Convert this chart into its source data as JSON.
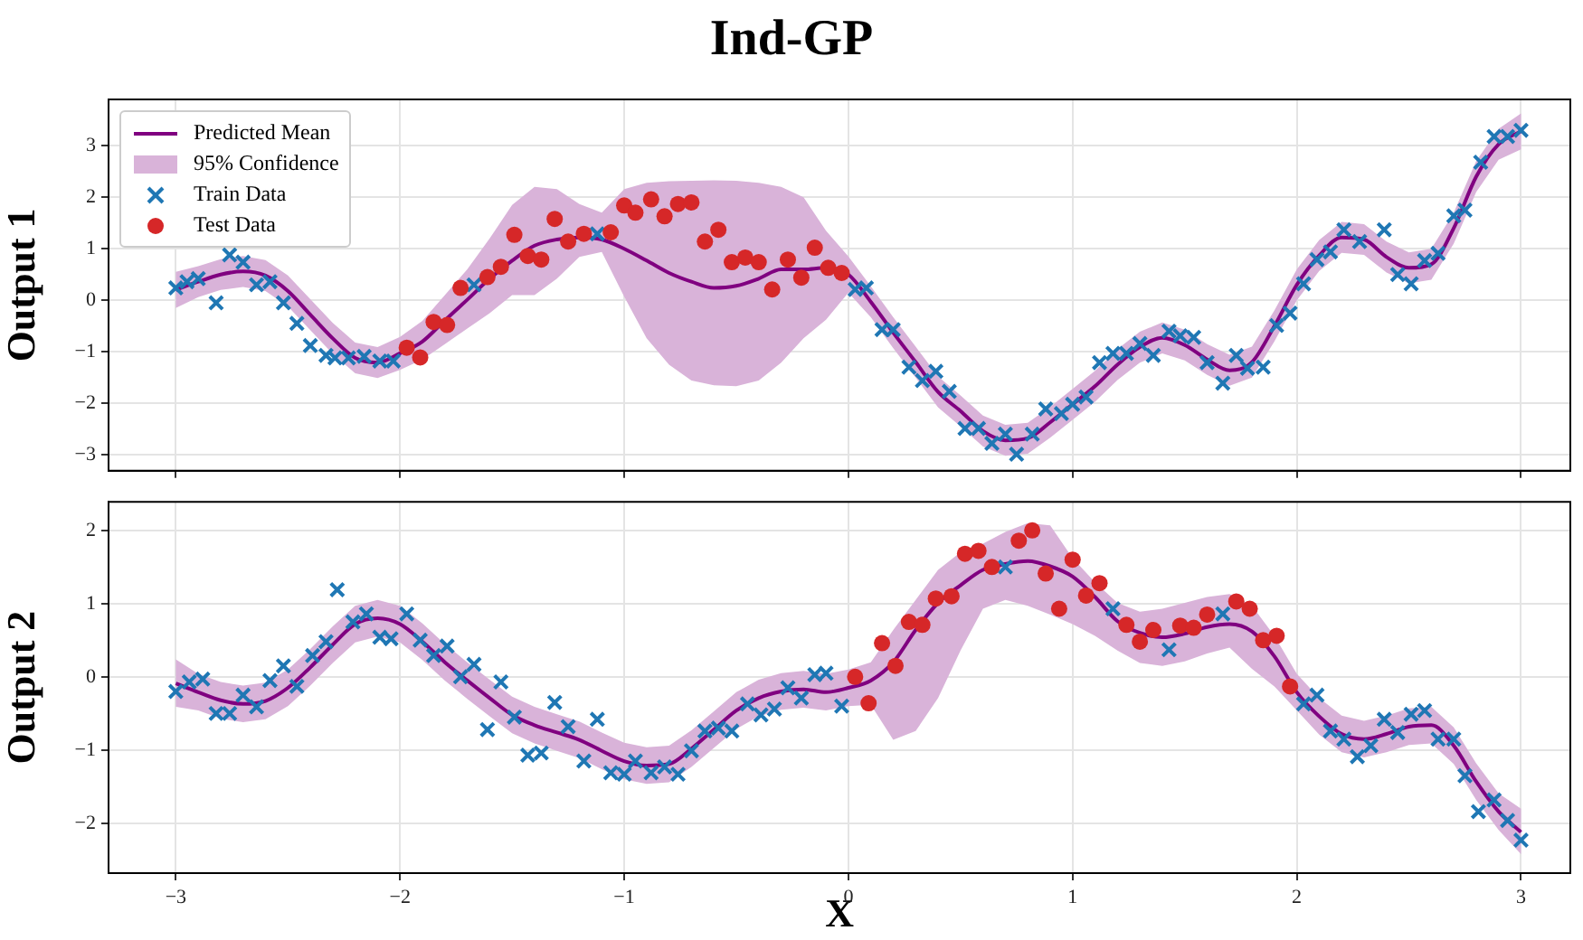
{
  "chart_data": [
    {
      "type": "line",
      "title": "Ind-GP",
      "ylabel": "Output 1",
      "xlim": [
        -3.3,
        3.22
      ],
      "xticks": [
        -3,
        -2,
        -1,
        0,
        1,
        2,
        3
      ],
      "ylim": [
        -3.31,
        3.9
      ],
      "yticks": [
        -3,
        -2,
        -1,
        0,
        1,
        2,
        3
      ],
      "grid": true,
      "legend": "top left",
      "tick_labels": "y",
      "annotations": [
        "95% Confidence"
      ],
      "series": [
        {
          "name": "Predicted Mean",
          "type": "line",
          "color": "#800080",
          "marker": "none",
          "x": [
            -3.0,
            -2.9,
            -2.8,
            -2.7,
            -2.6,
            -2.5,
            -2.4,
            -2.3,
            -2.2,
            -2.1,
            -2.0,
            -1.9,
            -1.8,
            -1.7,
            -1.6,
            -1.5,
            -1.4,
            -1.3,
            -1.2,
            -1.1,
            -1.0,
            -0.9,
            -0.8,
            -0.7,
            -0.6,
            -0.5,
            -0.4,
            -0.3,
            -0.2,
            -0.1,
            0.0,
            0.1,
            0.2,
            0.3,
            0.4,
            0.5,
            0.6,
            0.7,
            0.8,
            0.9,
            1.0,
            1.1,
            1.2,
            1.3,
            1.4,
            1.5,
            1.6,
            1.7,
            1.8,
            1.9,
            2.0,
            2.1,
            2.2,
            2.3,
            2.4,
            2.5,
            2.6,
            2.7,
            2.8,
            2.9,
            3.0
          ],
          "values": [
            0.2,
            0.36,
            0.5,
            0.56,
            0.48,
            0.18,
            -0.28,
            -0.74,
            -1.12,
            -1.21,
            -1.03,
            -0.8,
            -0.39,
            0.01,
            0.42,
            0.77,
            1.06,
            1.18,
            1.22,
            1.18,
            1.0,
            0.77,
            0.53,
            0.36,
            0.24,
            0.28,
            0.42,
            0.6,
            0.6,
            0.63,
            0.5,
            -0.03,
            -0.63,
            -1.2,
            -1.78,
            -2.15,
            -2.54,
            -2.72,
            -2.68,
            -2.37,
            -2.02,
            -1.67,
            -1.25,
            -0.91,
            -0.73,
            -0.87,
            -1.15,
            -1.36,
            -1.2,
            -0.5,
            0.3,
            0.87,
            1.22,
            1.18,
            0.84,
            0.63,
            0.7,
            1.4,
            2.4,
            3.03,
            3.28
          ],
          "lower": [
            -0.15,
            0.06,
            0.2,
            0.26,
            0.18,
            -0.12,
            -0.58,
            -1.04,
            -1.42,
            -1.51,
            -1.35,
            -1.15,
            -0.85,
            -0.55,
            -0.25,
            0.1,
            0.1,
            0.42,
            0.84,
            0.94,
            0.07,
            -0.74,
            -1.25,
            -1.56,
            -1.65,
            -1.67,
            -1.56,
            -1.21,
            -0.74,
            -0.38,
            0.15,
            -0.33,
            -0.93,
            -1.5,
            -2.08,
            -2.45,
            -2.84,
            -3.02,
            -2.98,
            -2.67,
            -2.32,
            -1.97,
            -1.55,
            -1.21,
            -1.03,
            -1.17,
            -1.45,
            -1.66,
            -1.5,
            -0.8,
            0.0,
            0.57,
            0.92,
            0.88,
            0.54,
            0.33,
            0.4,
            1.1,
            2.1,
            2.73,
            2.93
          ],
          "upper": [
            0.55,
            0.66,
            0.8,
            0.86,
            0.78,
            0.48,
            0.02,
            -0.44,
            -0.82,
            -0.91,
            -0.71,
            -0.4,
            0.1,
            0.6,
            1.2,
            1.85,
            2.2,
            2.16,
            1.87,
            1.7,
            2.16,
            2.28,
            2.31,
            2.32,
            2.33,
            2.32,
            2.28,
            2.2,
            2.0,
            1.35,
            0.85,
            0.27,
            -0.33,
            -0.9,
            -1.48,
            -1.85,
            -2.24,
            -2.42,
            -2.38,
            -2.07,
            -1.72,
            -1.37,
            -0.95,
            -0.61,
            -0.43,
            -0.57,
            -0.85,
            -1.06,
            -0.9,
            -0.2,
            0.6,
            1.17,
            1.52,
            1.48,
            1.14,
            0.93,
            1.0,
            1.7,
            2.7,
            3.33,
            3.63
          ]
        },
        {
          "name": "Train Data",
          "type": "scatter",
          "color": "#1f77b4",
          "marker": "cross",
          "x": [
            -3.0,
            -2.95,
            -2.9,
            -2.82,
            -2.76,
            -2.7,
            -2.64,
            -2.58,
            -2.52,
            -2.46,
            -2.4,
            -2.33,
            -2.29,
            -2.23,
            -2.16,
            -2.09,
            -2.03,
            -1.67,
            -1.12,
            0.03,
            0.08,
            0.15,
            0.2,
            0.27,
            0.33,
            0.39,
            0.45,
            0.52,
            0.58,
            0.64,
            0.7,
            0.75,
            0.82,
            0.88,
            0.95,
            1.0,
            1.06,
            1.12,
            1.18,
            1.24,
            1.3,
            1.36,
            1.43,
            1.48,
            1.54,
            1.6,
            1.67,
            1.73,
            1.78,
            1.85,
            1.91,
            1.97,
            2.03,
            2.09,
            2.15,
            2.21,
            2.28,
            2.39,
            2.45,
            2.51,
            2.57,
            2.63,
            2.7,
            2.75,
            2.82,
            2.88,
            2.94,
            3.0
          ],
          "values": [
            0.24,
            0.36,
            0.42,
            -0.05,
            0.88,
            0.74,
            0.3,
            0.36,
            -0.05,
            -0.45,
            -0.88,
            -1.07,
            -1.12,
            -1.12,
            -1.09,
            -1.18,
            -1.18,
            0.3,
            1.29,
            0.21,
            0.24,
            -0.57,
            -0.57,
            -1.3,
            -1.56,
            -1.38,
            -1.77,
            -2.49,
            -2.49,
            -2.78,
            -2.6,
            -2.99,
            -2.6,
            -2.11,
            -2.2,
            -2.02,
            -1.88,
            -1.21,
            -1.03,
            -1.03,
            -0.84,
            -1.07,
            -0.6,
            -0.69,
            -0.72,
            -1.21,
            -1.61,
            -1.07,
            -1.32,
            -1.3,
            -0.49,
            -0.25,
            0.32,
            0.79,
            0.94,
            1.37,
            1.14,
            1.37,
            0.5,
            0.32,
            0.77,
            0.91,
            1.64,
            1.75,
            2.68,
            3.18,
            3.18,
            3.3
          ]
        },
        {
          "name": "Test Data",
          "type": "scatter",
          "color": "#d62728",
          "marker": "circle",
          "x": [
            -1.97,
            -1.91,
            -1.85,
            -1.79,
            -1.73,
            -1.61,
            -1.55,
            -1.49,
            -1.43,
            -1.37,
            -1.31,
            -1.25,
            -1.18,
            -1.06,
            -1.0,
            -0.95,
            -0.88,
            -0.82,
            -0.76,
            -0.7,
            -0.64,
            -0.58,
            -0.52,
            -0.46,
            -0.4,
            -0.34,
            -0.27,
            -0.21,
            -0.15,
            -0.09,
            -0.03
          ],
          "values": [
            -0.92,
            -1.11,
            -0.42,
            -0.48,
            0.24,
            0.45,
            0.65,
            1.27,
            0.86,
            0.79,
            1.58,
            1.14,
            1.29,
            1.32,
            1.84,
            1.7,
            1.96,
            1.63,
            1.87,
            1.9,
            1.14,
            1.37,
            0.74,
            0.83,
            0.74,
            0.21,
            0.79,
            0.44,
            1.02,
            0.63,
            0.53
          ]
        }
      ]
    },
    {
      "type": "line",
      "ylabel": "Output 2",
      "xlabel": "X",
      "xlim": [
        -3.3,
        3.22
      ],
      "xticks": [
        -3,
        -2,
        -1,
        0,
        1,
        2,
        3
      ],
      "ylim": [
        -2.68,
        2.39
      ],
      "yticks": [
        -2,
        -1,
        0,
        1,
        2
      ],
      "grid": true,
      "series": [
        {
          "type": "line",
          "color": "#800080",
          "marker": "none",
          "x": [
            -3.0,
            -2.9,
            -2.8,
            -2.7,
            -2.6,
            -2.5,
            -2.4,
            -2.3,
            -2.2,
            -2.1,
            -2.0,
            -1.9,
            -1.8,
            -1.7,
            -1.6,
            -1.5,
            -1.4,
            -1.3,
            -1.2,
            -1.1,
            -1.0,
            -0.9,
            -0.8,
            -0.7,
            -0.6,
            -0.5,
            -0.4,
            -0.3,
            -0.2,
            -0.1,
            0.0,
            0.1,
            0.2,
            0.3,
            0.4,
            0.5,
            0.6,
            0.7,
            0.8,
            0.9,
            1.0,
            1.1,
            1.2,
            1.3,
            1.4,
            1.5,
            1.6,
            1.7,
            1.8,
            1.9,
            2.0,
            2.1,
            2.2,
            2.3,
            2.4,
            2.5,
            2.6,
            2.7,
            2.8,
            2.9,
            3.0
          ],
          "values": [
            -0.09,
            -0.21,
            -0.32,
            -0.37,
            -0.33,
            -0.15,
            0.13,
            0.44,
            0.72,
            0.8,
            0.72,
            0.48,
            0.2,
            -0.05,
            -0.29,
            -0.52,
            -0.66,
            -0.76,
            -0.86,
            -1.01,
            -1.15,
            -1.21,
            -1.19,
            -0.98,
            -0.72,
            -0.46,
            -0.29,
            -0.2,
            -0.17,
            -0.21,
            -0.15,
            -0.05,
            0.2,
            0.64,
            1.01,
            1.25,
            1.46,
            1.54,
            1.58,
            1.51,
            1.37,
            1.09,
            0.76,
            0.6,
            0.54,
            0.59,
            0.68,
            0.72,
            0.62,
            0.28,
            -0.21,
            -0.54,
            -0.78,
            -0.85,
            -0.78,
            -0.68,
            -0.66,
            -0.94,
            -1.43,
            -1.84,
            -2.12
          ],
          "lower": [
            -0.41,
            -0.46,
            -0.57,
            -0.62,
            -0.58,
            -0.4,
            -0.12,
            0.19,
            0.47,
            0.55,
            0.47,
            0.23,
            -0.05,
            -0.3,
            -0.54,
            -0.77,
            -0.91,
            -1.01,
            -1.11,
            -1.26,
            -1.4,
            -1.46,
            -1.44,
            -1.23,
            -0.97,
            -0.71,
            -0.54,
            -0.45,
            -0.42,
            -0.46,
            -0.4,
            -0.38,
            -0.86,
            -0.74,
            -0.29,
            0.36,
            0.93,
            1.05,
            0.97,
            0.85,
            0.72,
            0.56,
            0.36,
            0.19,
            0.15,
            0.21,
            0.32,
            0.4,
            0.11,
            -0.13,
            -0.46,
            -0.79,
            -1.03,
            -1.1,
            -1.03,
            -0.93,
            -0.91,
            -1.19,
            -1.68,
            -2.09,
            -2.42
          ],
          "upper": [
            0.24,
            0.04,
            -0.07,
            -0.12,
            -0.08,
            0.1,
            0.38,
            0.69,
            0.97,
            1.05,
            0.97,
            0.73,
            0.45,
            0.2,
            -0.04,
            -0.27,
            -0.41,
            -0.51,
            -0.61,
            -0.76,
            -0.9,
            -0.96,
            -0.94,
            -0.73,
            -0.47,
            -0.21,
            -0.04,
            0.05,
            0.08,
            0.04,
            0.1,
            0.2,
            0.64,
            1.05,
            1.46,
            1.7,
            1.82,
            1.98,
            2.1,
            2.07,
            1.62,
            1.29,
            1.01,
            0.89,
            0.93,
            1.01,
            1.09,
            1.13,
            0.97,
            0.56,
            0.04,
            -0.29,
            -0.53,
            -0.6,
            -0.53,
            -0.43,
            -0.41,
            -0.69,
            -1.18,
            -1.59,
            -1.8
          ]
        },
        {
          "type": "scatter",
          "color": "#1f77b4",
          "marker": "cross",
          "x": [
            -3.0,
            -2.94,
            -2.88,
            -2.82,
            -2.76,
            -2.7,
            -2.64,
            -2.58,
            -2.52,
            -2.46,
            -2.39,
            -2.33,
            -2.28,
            -2.21,
            -2.15,
            -2.09,
            -2.04,
            -1.97,
            -1.91,
            -1.85,
            -1.79,
            -1.73,
            -1.67,
            -1.61,
            -1.55,
            -1.49,
            -1.43,
            -1.37,
            -1.31,
            -1.25,
            -1.18,
            -1.12,
            -1.06,
            -1.0,
            -0.95,
            -0.88,
            -0.82,
            -0.76,
            -0.7,
            -0.64,
            -0.58,
            -0.52,
            -0.45,
            -0.39,
            -0.33,
            -0.27,
            -0.21,
            -0.15,
            -0.1,
            -0.03,
            0.7,
            1.18,
            1.43,
            1.67,
            2.03,
            2.09,
            2.15,
            2.21,
            2.27,
            2.33,
            2.39,
            2.45,
            2.51,
            2.57,
            2.63,
            2.7,
            2.75,
            2.81,
            2.88,
            2.94,
            3.0
          ],
          "values": [
            -0.2,
            -0.07,
            -0.03,
            -0.5,
            -0.5,
            -0.25,
            -0.41,
            -0.05,
            0.15,
            -0.13,
            0.29,
            0.48,
            1.19,
            0.75,
            0.86,
            0.54,
            0.52,
            0.86,
            0.5,
            0.29,
            0.42,
            0.0,
            0.17,
            -0.72,
            -0.07,
            -0.55,
            -1.07,
            -1.04,
            -0.35,
            -0.68,
            -1.15,
            -0.58,
            -1.31,
            -1.33,
            -1.15,
            -1.31,
            -1.23,
            -1.33,
            -1.01,
            -0.74,
            -0.7,
            -0.74,
            -0.37,
            -0.52,
            -0.44,
            -0.15,
            -0.29,
            0.03,
            0.05,
            -0.4,
            1.5,
            0.93,
            0.37,
            0.86,
            -0.37,
            -0.25,
            -0.74,
            -0.85,
            -1.09,
            -0.94,
            -0.58,
            -0.76,
            -0.51,
            -0.46,
            -0.85,
            -0.85,
            -1.35,
            -1.84,
            -1.68,
            -1.96,
            -2.23
          ]
        },
        {
          "type": "scatter",
          "color": "#d62728",
          "marker": "circle",
          "x": [
            0.03,
            0.09,
            0.15,
            0.21,
            0.27,
            0.33,
            0.39,
            0.46,
            0.52,
            0.58,
            0.64,
            0.76,
            0.82,
            0.88,
            0.94,
            1.0,
            1.06,
            1.12,
            1.24,
            1.3,
            1.36,
            1.48,
            1.54,
            1.6,
            1.73,
            1.79,
            1.85,
            1.91,
            1.97
          ],
          "values": [
            0.0,
            -0.36,
            0.46,
            0.15,
            0.75,
            0.71,
            1.07,
            1.1,
            1.68,
            1.72,
            1.5,
            1.86,
            2.0,
            1.41,
            0.93,
            1.6,
            1.11,
            1.28,
            0.71,
            0.48,
            0.64,
            0.7,
            0.67,
            0.85,
            1.03,
            0.93,
            0.5,
            0.56,
            -0.13
          ]
        }
      ]
    }
  ]
}
